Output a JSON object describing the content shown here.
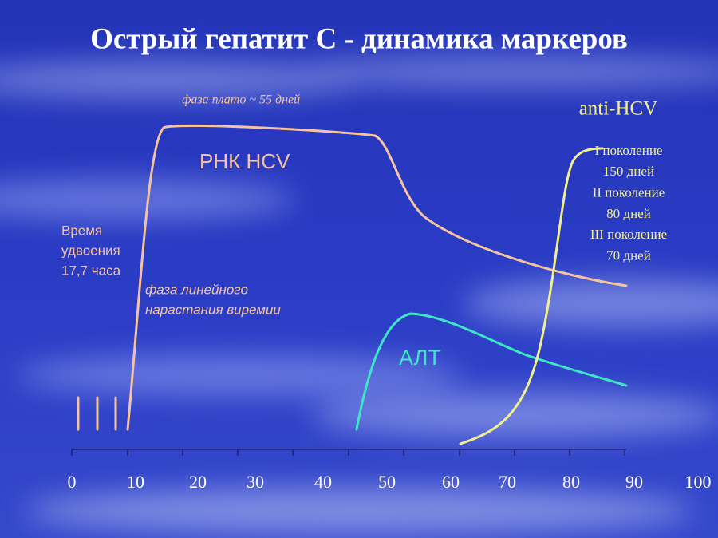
{
  "title": "Острый гепатит С - динамика маркеров",
  "axis": {
    "ticks": [
      0,
      10,
      20,
      30,
      40,
      50,
      60,
      70,
      80,
      90,
      100
    ]
  },
  "labels": {
    "plateau": "фаза плато ~ 55 дней",
    "rna": "РНК HCV",
    "doubling": [
      "Время",
      "удвоения",
      "17,7 часа"
    ],
    "linear": [
      "фаза линейного",
      "нарастания виремии"
    ],
    "alt": "АЛТ",
    "anti": "anti-HCV",
    "generations": [
      "I поколение",
      "150 дней",
      "II поколение",
      "80 дней",
      "III поколение",
      "70 дней"
    ]
  }
}
